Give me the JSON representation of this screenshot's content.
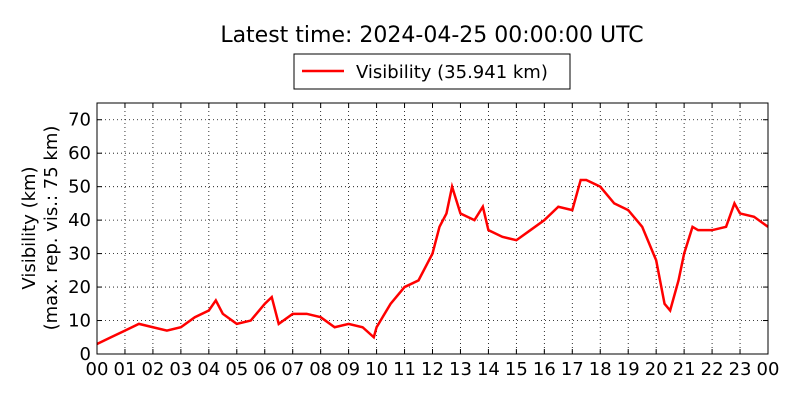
{
  "chart_data": {
    "type": "line",
    "title": "Latest time: 2024-04-25 00:00:00 UTC",
    "y_label": [
      "Visibility (km)",
      "(max. rep. vis.: 75 km)"
    ],
    "x": [
      0,
      0.5,
      1,
      1.5,
      2,
      2.5,
      3,
      3.5,
      4,
      4.25,
      4.5,
      5,
      5.5,
      6,
      6.25,
      6.5,
      7,
      7.5,
      8,
      8.5,
      9,
      9.5,
      9.9,
      10,
      10.5,
      11,
      11.5,
      12,
      12.25,
      12.5,
      12.7,
      13,
      13.5,
      13.8,
      14,
      14.5,
      15,
      15.5,
      16,
      16.5,
      17,
      17.3,
      17.5,
      18,
      18.5,
      19,
      19.5,
      20,
      20.3,
      20.5,
      20.8,
      21,
      21.3,
      21.5,
      22,
      22.5,
      22.8,
      23,
      23.5,
      24
    ],
    "series": [
      {
        "name": "Visibility (35.941 km)",
        "color": "#ff0000",
        "values": [
          3,
          5,
          7,
          9,
          8,
          7,
          8,
          11,
          13,
          16,
          12,
          9,
          10,
          15,
          17,
          9,
          12,
          12,
          11,
          8,
          9,
          8,
          5,
          8,
          15,
          20,
          22,
          30,
          38,
          42,
          50,
          42,
          40,
          44,
          37,
          35,
          34,
          37,
          40,
          44,
          43,
          52,
          52,
          50,
          45,
          43,
          38,
          28,
          15,
          13,
          22,
          30,
          38,
          37,
          37,
          38,
          45,
          42,
          41,
          38
        ]
      }
    ],
    "xlim": [
      0,
      24
    ],
    "xticks": [
      {
        "value": 0,
        "label": "00"
      },
      {
        "value": 1,
        "label": "01"
      },
      {
        "value": 2,
        "label": "02"
      },
      {
        "value": 3,
        "label": "03"
      },
      {
        "value": 4,
        "label": "04"
      },
      {
        "value": 5,
        "label": "05"
      },
      {
        "value": 6,
        "label": "06"
      },
      {
        "value": 7,
        "label": "07"
      },
      {
        "value": 8,
        "label": "08"
      },
      {
        "value": 9,
        "label": "09"
      },
      {
        "value": 10,
        "label": "10"
      },
      {
        "value": 11,
        "label": "11"
      },
      {
        "value": 12,
        "label": "12"
      },
      {
        "value": 13,
        "label": "13"
      },
      {
        "value": 14,
        "label": "14"
      },
      {
        "value": 15,
        "label": "15"
      },
      {
        "value": 16,
        "label": "16"
      },
      {
        "value": 17,
        "label": "17"
      },
      {
        "value": 18,
        "label": "18"
      },
      {
        "value": 19,
        "label": "19"
      },
      {
        "value": 20,
        "label": "20"
      },
      {
        "value": 21,
        "label": "21"
      },
      {
        "value": 22,
        "label": "22"
      },
      {
        "value": 23,
        "label": "23"
      },
      {
        "value": 24,
        "label": "00"
      }
    ],
    "ylim": [
      0,
      75
    ],
    "yticks": [
      0,
      10,
      20,
      30,
      40,
      50,
      60,
      70
    ],
    "grid": true
  }
}
